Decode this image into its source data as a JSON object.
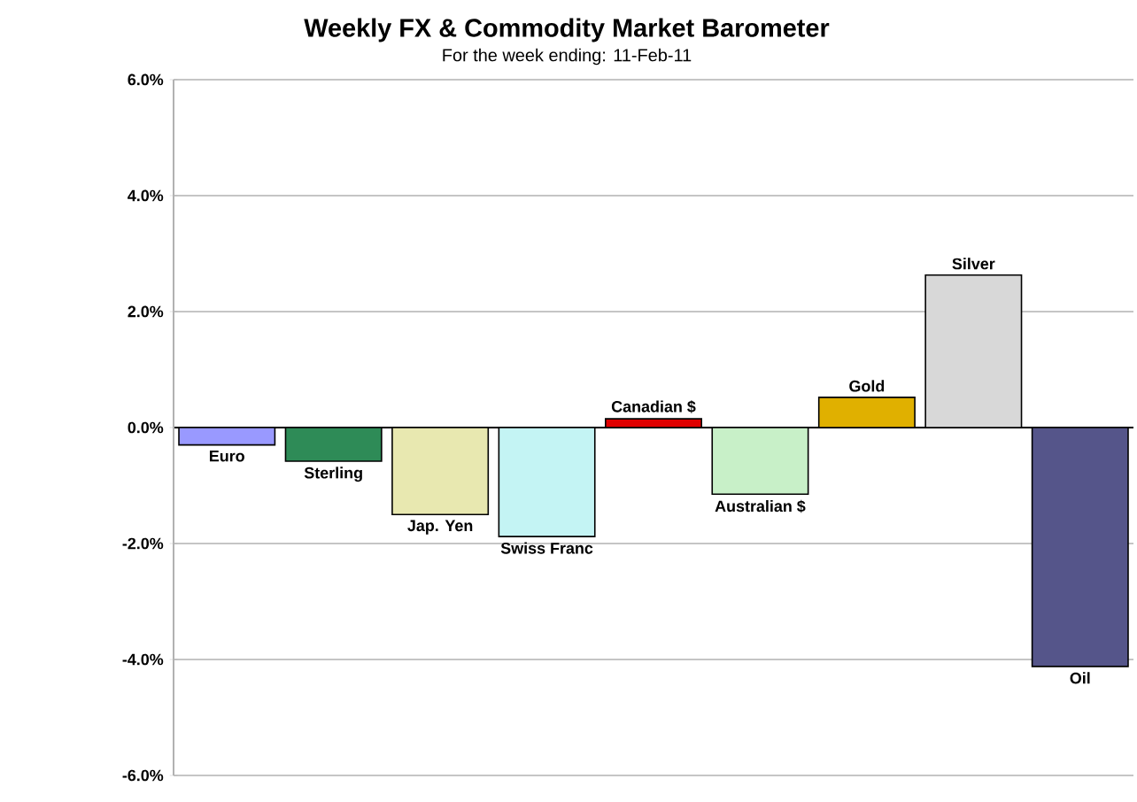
{
  "chart_data": {
    "type": "bar",
    "title": "Weekly FX & Commodity Market Barometer",
    "subtitle": "For the week ending:  11-Feb-11",
    "categories": [
      "Euro",
      "Sterling",
      "Jap. Yen",
      "Swiss Franc",
      "Canadian $",
      "Australian $",
      "Gold",
      "Silver",
      "Oil"
    ],
    "values": [
      -0.3,
      -0.58,
      -1.5,
      -1.88,
      0.15,
      -1.15,
      0.52,
      2.63,
      -4.12
    ],
    "colors": [
      "#9999ff",
      "#2e8b57",
      "#e8e8b0",
      "#c4f4f4",
      "#e00000",
      "#c8f0c8",
      "#e0b000",
      "#d8d8d8",
      "#55558a"
    ],
    "ylim": [
      -6,
      6
    ],
    "yticks": [
      {
        "value": -6,
        "label": "-6.0%"
      },
      {
        "value": -4,
        "label": "-4.0%"
      },
      {
        "value": -2,
        "label": "-2.0%"
      },
      {
        "value": 0,
        "label": "0.0%"
      },
      {
        "value": 2,
        "label": "2.0%"
      },
      {
        "value": 4,
        "label": "4.0%"
      },
      {
        "value": 6,
        "label": "6.0%"
      }
    ],
    "grid": "y"
  }
}
